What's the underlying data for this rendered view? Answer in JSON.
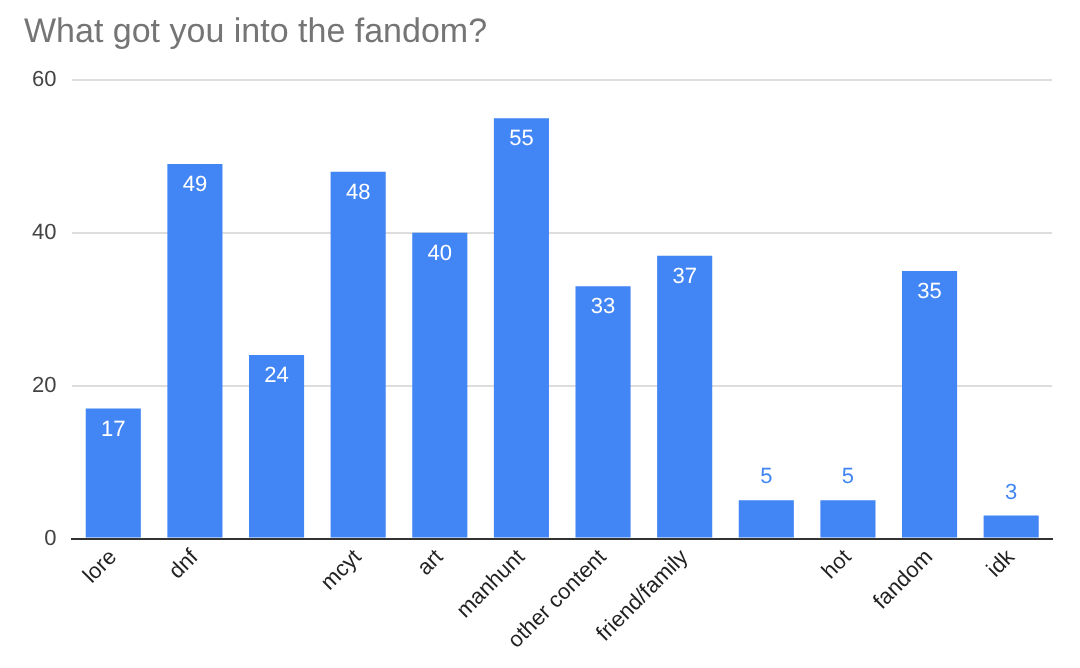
{
  "chart_data": {
    "type": "bar",
    "title": "What got you into the fandom?",
    "categories": [
      "lore",
      "dnf",
      null,
      "mcyt",
      "art",
      "manhunt",
      "other content",
      "friend/family",
      null,
      "hot",
      "fandom",
      "idk"
    ],
    "values": [
      17,
      49,
      24,
      48,
      40,
      55,
      33,
      37,
      5,
      5,
      35,
      3
    ],
    "color": "#4285f4",
    "ylim": [
      0,
      60
    ],
    "yticks": [
      0,
      20,
      40,
      60
    ],
    "grid": "y",
    "data_labels": true
  }
}
